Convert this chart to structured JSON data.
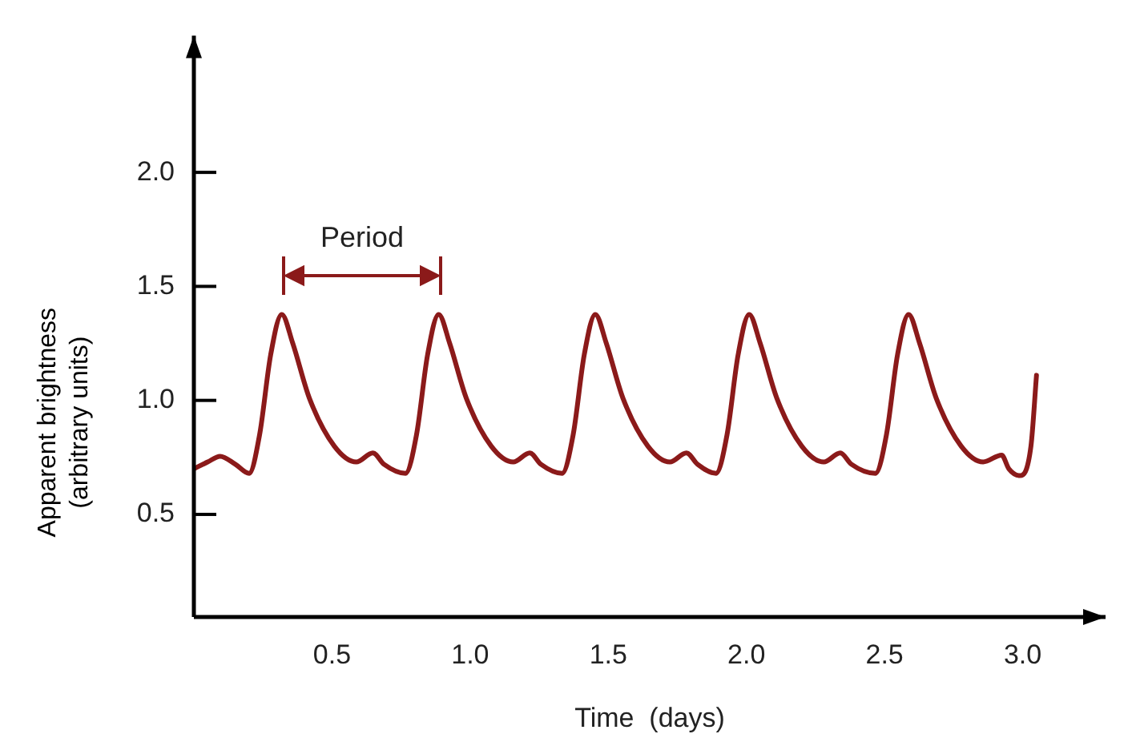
{
  "chart_data": {
    "type": "line",
    "xlabel": "Time  (days)",
    "ylabel": "Apparent brightness\n(arbitrary units)",
    "xlim": [
      0,
      3.3
    ],
    "ylim": [
      0.05,
      2.6
    ],
    "xticks": [
      0.5,
      {
        "value": 1,
        "label": "1.0"
      },
      1.5,
      {
        "value": 2,
        "label": "2.0"
      },
      2.5,
      {
        "value": 3,
        "label": "3.0"
      }
    ],
    "yticks": [
      0.5,
      {
        "value": 1,
        "label": "1.0"
      },
      1.5,
      {
        "value": 2,
        "label": "2.0"
      }
    ],
    "grid": false,
    "legend": false,
    "marker": "none",
    "line_style": "solid",
    "annotations": [
      "Period"
    ],
    "series": [
      {
        "color": "#8b1a1a",
        "x": [
          0,
          0.05,
          0.095,
          0.15,
          0.2,
          0.238,
          0.278,
          0.318,
          0.358,
          0.418,
          0.508,
          0.588,
          0.648,
          0.688,
          0.766,
          0.806,
          0.846,
          0.886,
          0.926,
          0.986,
          1.076,
          1.156,
          1.216,
          1.256,
          1.333,
          1.373,
          1.413,
          1.453,
          1.493,
          1.553,
          1.643,
          1.723,
          1.783,
          1.823,
          1.89,
          1.93,
          1.97,
          2.01,
          2.05,
          2.11,
          2.2,
          2.28,
          2.34,
          2.38,
          2.467,
          2.507,
          2.547,
          2.587,
          2.627,
          2.687,
          2.777,
          2.857,
          2.924,
          2.95,
          2.99,
          3.03,
          3.05
        ],
        "values": [
          0.7,
          0.73,
          0.755,
          0.72,
          0.68,
          0.85,
          1.2,
          1.377,
          1.25,
          1.01,
          0.8,
          0.73,
          0.77,
          0.72,
          0.68,
          0.85,
          1.2,
          1.377,
          1.25,
          1.01,
          0.8,
          0.73,
          0.77,
          0.72,
          0.68,
          0.85,
          1.2,
          1.377,
          1.25,
          1.01,
          0.8,
          0.73,
          0.77,
          0.72,
          0.68,
          0.85,
          1.2,
          1.377,
          1.25,
          1.01,
          0.8,
          0.73,
          0.77,
          0.72,
          0.68,
          0.85,
          1.2,
          1.377,
          1.25,
          1.01,
          0.8,
          0.73,
          0.76,
          0.7,
          0.67,
          0.8,
          1.11
        ]
      }
    ]
  }
}
